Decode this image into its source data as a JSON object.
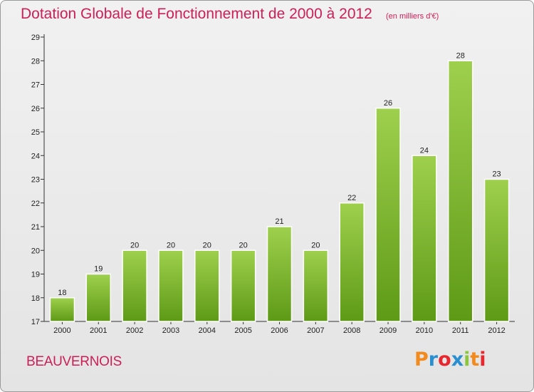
{
  "header": {
    "title": "Dotation Globale de Fonctionnement de 2000 à 2012",
    "subtitle": "(en milliers d'€)"
  },
  "footer": {
    "town": "BEAUVERNOIS",
    "logo_text": "Proxiti",
    "logo_colors": [
      "#f28a1e",
      "#2a8fd0",
      "#e8262e",
      "#2a8fd0",
      "#8cc63f",
      "#f28a1e",
      "#e8262e"
    ]
  },
  "chart_data": {
    "type": "bar",
    "categories": [
      "2000",
      "2001",
      "2002",
      "2003",
      "2004",
      "2005",
      "2006",
      "2007",
      "2008",
      "2009",
      "2010",
      "2011",
      "2012"
    ],
    "values": [
      18,
      19,
      20,
      20,
      20,
      20,
      21,
      20,
      22,
      26,
      24,
      28,
      23
    ],
    "title": "Dotation Globale de Fonctionnement de 2000 à 2012",
    "subtitle": "(en milliers d'€)",
    "xlabel": "",
    "ylabel": "",
    "ylim": [
      17,
      29
    ],
    "yticks": [
      17,
      18,
      19,
      20,
      21,
      22,
      23,
      24,
      25,
      26,
      27,
      28,
      29
    ],
    "grid": false,
    "bar_color_top": "#9ed04d",
    "bar_color_bottom": "#5e9a16"
  }
}
